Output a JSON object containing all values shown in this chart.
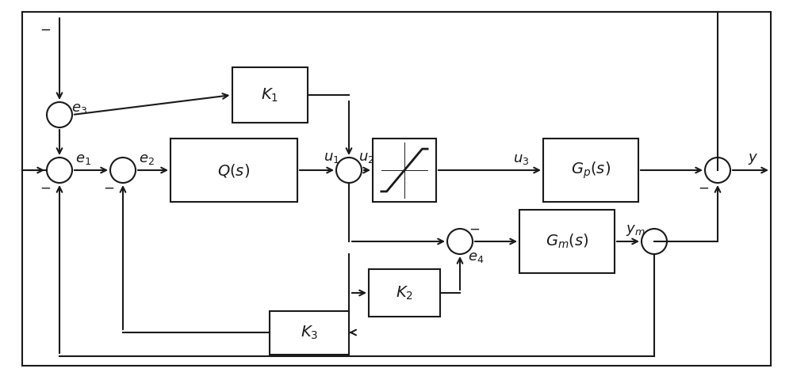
{
  "bg_color": "#ffffff",
  "line_color": "#1a1a1a",
  "fig_width": 10.0,
  "fig_height": 4.75,
  "dpi": 100
}
